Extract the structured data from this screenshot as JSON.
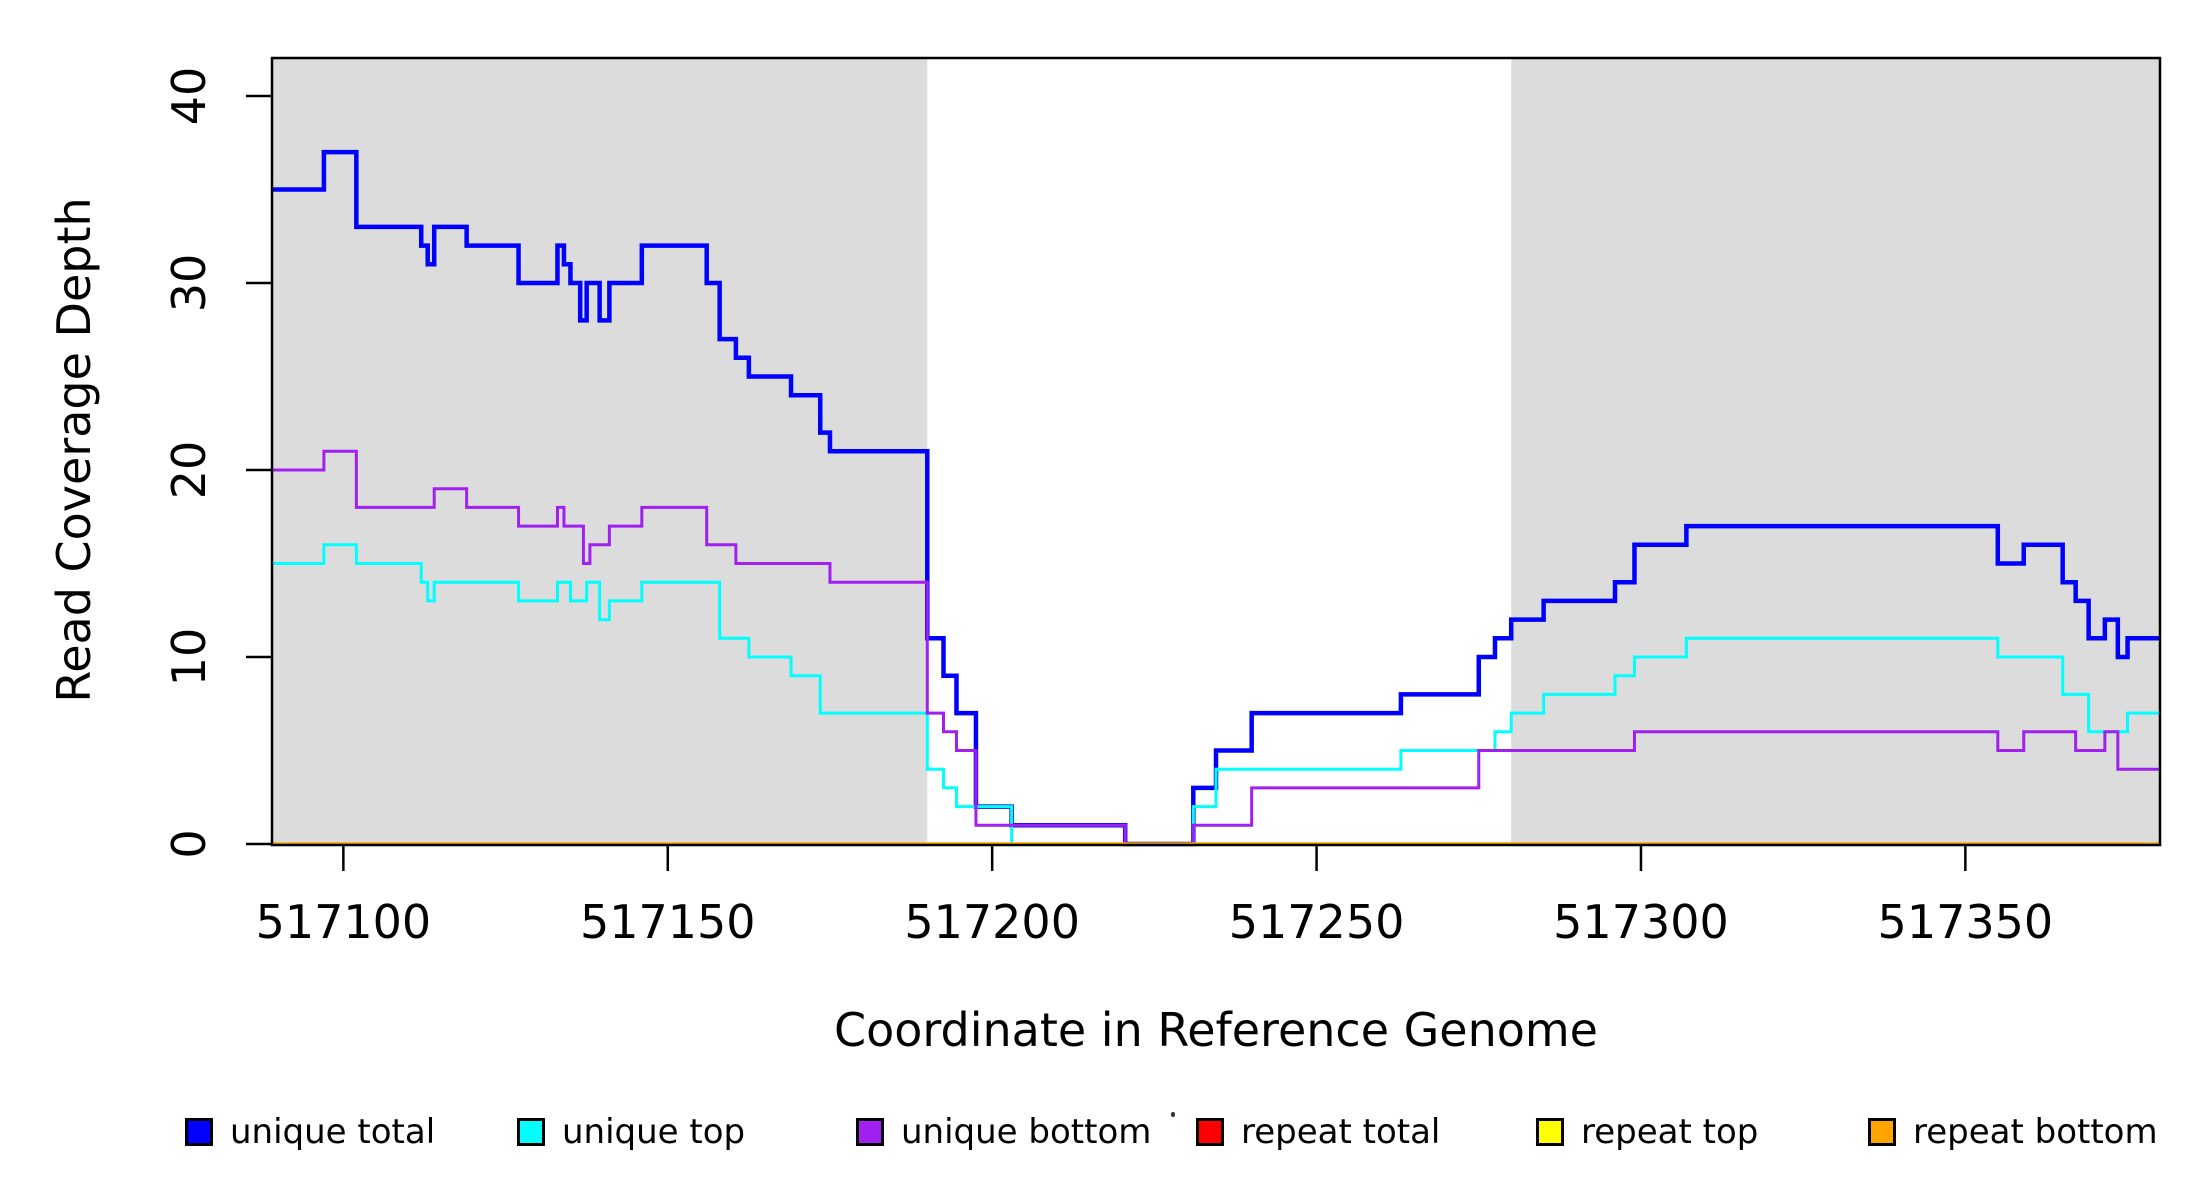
{
  "chart_data": {
    "type": "line",
    "subtype": "step",
    "title": "",
    "xlabel": "Coordinate in Reference Genome",
    "ylabel": "Read Coverage Depth",
    "xlim": [
      517089,
      517380
    ],
    "ylim": [
      0,
      40
    ],
    "x_ticks": [
      517100,
      517150,
      517200,
      517250,
      517300,
      517350
    ],
    "y_ticks": [
      0,
      10,
      20,
      30,
      40
    ],
    "grid": false,
    "legend_position": "bottom",
    "background_color": "#ffffff",
    "shaded_region_color": "#DCDCDC",
    "shaded_regions": [
      {
        "from": 517089,
        "to": 517190
      },
      {
        "from": 517280,
        "to": 517380
      }
    ],
    "series": [
      {
        "name": "unique total",
        "color": "#0000FF",
        "line_width": 4.5,
        "points": [
          [
            517089,
            35
          ],
          [
            517097,
            37
          ],
          [
            517102,
            33
          ],
          [
            517112,
            32
          ],
          [
            517113,
            31
          ],
          [
            517114,
            33
          ],
          [
            517119,
            32
          ],
          [
            517127,
            30
          ],
          [
            517133,
            32
          ],
          [
            517134,
            31
          ],
          [
            517135,
            30
          ],
          [
            517136.5,
            28
          ],
          [
            517137.5,
            30
          ],
          [
            517139.5,
            28
          ],
          [
            517141,
            30
          ],
          [
            517146,
            32
          ],
          [
            517156,
            30
          ],
          [
            517158,
            27
          ],
          [
            517160.5,
            26
          ],
          [
            517162.5,
            25
          ],
          [
            517169,
            24
          ],
          [
            517173.5,
            22
          ],
          [
            517175,
            21
          ],
          [
            517190,
            11
          ],
          [
            517192.5,
            9
          ],
          [
            517194.5,
            7
          ],
          [
            517197.5,
            2
          ],
          [
            517203,
            1
          ],
          [
            517220.5,
            0
          ],
          [
            517231,
            3
          ],
          [
            517234.5,
            5
          ],
          [
            517240,
            7
          ],
          [
            517263,
            8
          ],
          [
            517275,
            10
          ],
          [
            517277.5,
            11
          ],
          [
            517280,
            12
          ],
          [
            517285,
            13
          ],
          [
            517296,
            14
          ],
          [
            517299,
            16
          ],
          [
            517307,
            17
          ],
          [
            517355,
            15
          ],
          [
            517359,
            16
          ],
          [
            517365,
            14
          ],
          [
            517367,
            13
          ],
          [
            517369,
            11
          ],
          [
            517371.5,
            12
          ],
          [
            517373.5,
            10
          ],
          [
            517375,
            11
          ]
        ]
      },
      {
        "name": "unique top",
        "color": "#00FFFF",
        "line_width": 3,
        "points": [
          [
            517089,
            15
          ],
          [
            517097,
            16
          ],
          [
            517102,
            15
          ],
          [
            517112,
            14
          ],
          [
            517113,
            13
          ],
          [
            517114,
            14
          ],
          [
            517127,
            13
          ],
          [
            517133,
            14
          ],
          [
            517135,
            13
          ],
          [
            517137.5,
            14
          ],
          [
            517139.5,
            12
          ],
          [
            517141,
            13
          ],
          [
            517146,
            14
          ],
          [
            517158,
            11
          ],
          [
            517162.5,
            10
          ],
          [
            517169,
            9
          ],
          [
            517173.5,
            7
          ],
          [
            517190,
            4
          ],
          [
            517192.5,
            3
          ],
          [
            517194.5,
            2
          ],
          [
            517203,
            0
          ],
          [
            517231,
            2
          ],
          [
            517234.5,
            4
          ],
          [
            517263,
            5
          ],
          [
            517277.5,
            6
          ],
          [
            517280,
            7
          ],
          [
            517285,
            8
          ],
          [
            517296,
            9
          ],
          [
            517299,
            10
          ],
          [
            517307,
            11
          ],
          [
            517355,
            10
          ],
          [
            517365,
            8
          ],
          [
            517369,
            6
          ],
          [
            517375,
            7
          ]
        ]
      },
      {
        "name": "unique bottom",
        "color": "#A020F0",
        "line_width": 3,
        "points": [
          [
            517089,
            20
          ],
          [
            517097,
            21
          ],
          [
            517102,
            18
          ],
          [
            517114,
            19
          ],
          [
            517119,
            18
          ],
          [
            517127,
            17
          ],
          [
            517133,
            18
          ],
          [
            517134,
            17
          ],
          [
            517137,
            15
          ],
          [
            517138,
            16
          ],
          [
            517141,
            17
          ],
          [
            517146,
            18
          ],
          [
            517156,
            16
          ],
          [
            517160.5,
            15
          ],
          [
            517175,
            14
          ],
          [
            517190,
            7
          ],
          [
            517192.5,
            6
          ],
          [
            517194.5,
            5
          ],
          [
            517197.5,
            1
          ],
          [
            517220.5,
            0
          ],
          [
            517231,
            1
          ],
          [
            517240,
            3
          ],
          [
            517275,
            5
          ],
          [
            517299,
            6
          ],
          [
            517355,
            5
          ],
          [
            517359,
            6
          ],
          [
            517367,
            5
          ],
          [
            517371.5,
            6
          ],
          [
            517373.5,
            4
          ]
        ]
      },
      {
        "name": "repeat total",
        "color": "#FF0000",
        "line_width": 3,
        "points": [
          [
            517089,
            0
          ]
        ]
      },
      {
        "name": "repeat top",
        "color": "#FFFF00",
        "line_width": 3,
        "points": [
          [
            517089,
            0
          ]
        ]
      },
      {
        "name": "repeat bottom",
        "color": "#FFA500",
        "line_width": 3.5,
        "points": [
          [
            517089,
            0
          ]
        ]
      }
    ]
  }
}
